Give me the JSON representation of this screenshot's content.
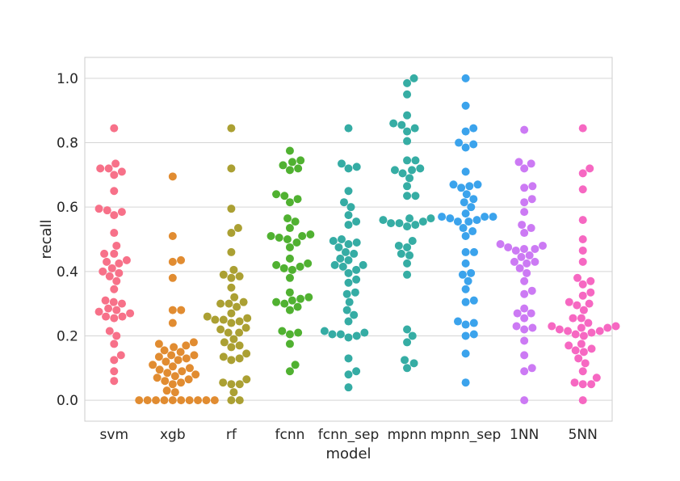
{
  "chart_data": {
    "type": "scatter",
    "subtype": "swarm",
    "title": "",
    "xlabel": "model",
    "ylabel": "recall",
    "ylim": [
      -0.065,
      1.065
    ],
    "yticks": [
      "0.0",
      "0.2",
      "0.4",
      "0.6",
      "0.8",
      "1.0"
    ],
    "grid": true,
    "categories": [
      "svm",
      "xgb",
      "rf",
      "fcnn",
      "fcnn_sep",
      "mpnn",
      "mpnn_sep",
      "1NN",
      "5NN"
    ],
    "colors": [
      "#f77189",
      "#e18c31",
      "#aba033",
      "#50b131",
      "#35aca4",
      "#36ada4",
      "#3ba3ec",
      "#cc7af4",
      "#f668c2"
    ],
    "series": [
      {
        "name": "svm",
        "values": [
          0.06,
          0.09,
          0.125,
          0.14,
          0.175,
          0.2,
          0.215,
          0.255,
          0.26,
          0.26,
          0.27,
          0.275,
          0.28,
          0.285,
          0.3,
          0.305,
          0.31,
          0.345,
          0.37,
          0.385,
          0.395,
          0.4,
          0.41,
          0.425,
          0.43,
          0.435,
          0.455,
          0.455,
          0.48,
          0.52,
          0.575,
          0.585,
          0.59,
          0.595,
          0.65,
          0.7,
          0.71,
          0.72,
          0.72,
          0.735,
          0.845
        ]
      },
      {
        "name": "xgb",
        "values": [
          0,
          0,
          0,
          0,
          0,
          0,
          0,
          0,
          0,
          0,
          0.025,
          0.03,
          0.05,
          0.055,
          0.06,
          0.065,
          0.07,
          0.075,
          0.08,
          0.085,
          0.09,
          0.095,
          0.1,
          0.105,
          0.11,
          0.12,
          0.125,
          0.13,
          0.135,
          0.14,
          0.14,
          0.15,
          0.155,
          0.165,
          0.17,
          0.175,
          0.18,
          0.24,
          0.28,
          0.28,
          0.38,
          0.43,
          0.435,
          0.51,
          0.695
        ]
      },
      {
        "name": "rf",
        "values": [
          0,
          0,
          0.025,
          0.05,
          0.05,
          0.055,
          0.065,
          0.125,
          0.13,
          0.135,
          0.145,
          0.165,
          0.17,
          0.18,
          0.19,
          0.21,
          0.21,
          0.22,
          0.225,
          0.24,
          0.245,
          0.25,
          0.25,
          0.255,
          0.26,
          0.27,
          0.29,
          0.3,
          0.3,
          0.305,
          0.32,
          0.35,
          0.38,
          0.385,
          0.39,
          0.405,
          0.46,
          0.52,
          0.535,
          0.595,
          0.72,
          0.845
        ]
      },
      {
        "name": "fcnn",
        "values": [
          0.09,
          0.11,
          0.175,
          0.205,
          0.21,
          0.215,
          0.28,
          0.29,
          0.3,
          0.305,
          0.31,
          0.315,
          0.32,
          0.335,
          0.38,
          0.405,
          0.41,
          0.415,
          0.42,
          0.425,
          0.44,
          0.475,
          0.49,
          0.5,
          0.505,
          0.51,
          0.51,
          0.515,
          0.535,
          0.555,
          0.565,
          0.615,
          0.625,
          0.635,
          0.64,
          0.715,
          0.72,
          0.73,
          0.74,
          0.745,
          0.775
        ]
      },
      {
        "name": "fcnn_sep",
        "values": [
          0.04,
          0.08,
          0.09,
          0.13,
          0.195,
          0.2,
          0.205,
          0.205,
          0.21,
          0.215,
          0.245,
          0.265,
          0.28,
          0.305,
          0.33,
          0.335,
          0.365,
          0.375,
          0.395,
          0.405,
          0.415,
          0.42,
          0.42,
          0.435,
          0.44,
          0.455,
          0.46,
          0.475,
          0.485,
          0.49,
          0.495,
          0.5,
          0.545,
          0.555,
          0.575,
          0.6,
          0.615,
          0.65,
          0.72,
          0.725,
          0.735,
          0.845
        ]
      },
      {
        "name": "mpnn",
        "values": [
          0.1,
          0.115,
          0.125,
          0.18,
          0.2,
          0.22,
          0.39,
          0.425,
          0.45,
          0.455,
          0.475,
          0.48,
          0.495,
          0.54,
          0.545,
          0.55,
          0.55,
          0.555,
          0.56,
          0.565,
          0.565,
          0.635,
          0.635,
          0.665,
          0.69,
          0.705,
          0.715,
          0.715,
          0.72,
          0.745,
          0.745,
          0.805,
          0.835,
          0.845,
          0.855,
          0.86,
          0.885,
          0.95,
          0.985,
          1.0
        ]
      },
      {
        "name": "mpnn_sep",
        "values": [
          0.055,
          0.145,
          0.2,
          0.205,
          0.235,
          0.24,
          0.245,
          0.305,
          0.31,
          0.345,
          0.37,
          0.39,
          0.395,
          0.425,
          0.46,
          0.46,
          0.51,
          0.525,
          0.535,
          0.555,
          0.555,
          0.56,
          0.565,
          0.57,
          0.57,
          0.57,
          0.58,
          0.6,
          0.615,
          0.625,
          0.64,
          0.66,
          0.665,
          0.67,
          0.67,
          0.71,
          0.785,
          0.795,
          0.8,
          0.835,
          0.845,
          0.915,
          1.0
        ]
      },
      {
        "name": "1NN",
        "values": [
          0,
          0.09,
          0.1,
          0.14,
          0.185,
          0.22,
          0.225,
          0.23,
          0.255,
          0.27,
          0.27,
          0.285,
          0.33,
          0.34,
          0.37,
          0.395,
          0.41,
          0.425,
          0.43,
          0.43,
          0.445,
          0.45,
          0.465,
          0.47,
          0.47,
          0.475,
          0.48,
          0.485,
          0.52,
          0.535,
          0.545,
          0.585,
          0.615,
          0.625,
          0.66,
          0.665,
          0.72,
          0.735,
          0.74,
          0.84
        ]
      },
      {
        "name": "5NN",
        "values": [
          0,
          0.05,
          0.05,
          0.055,
          0.07,
          0.09,
          0.115,
          0.13,
          0.15,
          0.155,
          0.16,
          0.17,
          0.175,
          0.2,
          0.205,
          0.21,
          0.215,
          0.215,
          0.22,
          0.225,
          0.225,
          0.23,
          0.23,
          0.24,
          0.255,
          0.255,
          0.28,
          0.295,
          0.3,
          0.305,
          0.325,
          0.335,
          0.36,
          0.37,
          0.38,
          0.43,
          0.465,
          0.5,
          0.56,
          0.655,
          0.705,
          0.72,
          0.845
        ]
      }
    ]
  }
}
